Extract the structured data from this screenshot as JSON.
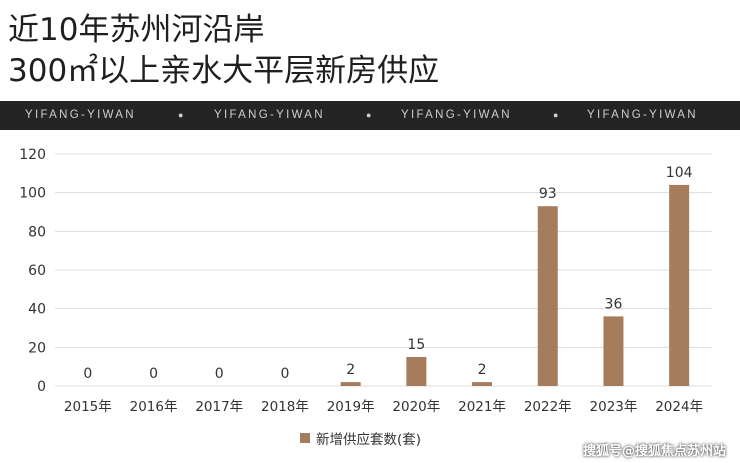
{
  "title": {
    "line1": "近10年苏州河沿岸",
    "line2": "300㎡以上亲水大平层新房供应"
  },
  "banner": {
    "items": [
      "YIFANG-YIWAN",
      "●",
      "YIFANG-YIWAN",
      "●",
      "YIFANG-YIWAN",
      "●",
      "YIFANG-YIWAN"
    ]
  },
  "chart_data": {
    "type": "bar",
    "categories": [
      "2015年",
      "2016年",
      "2017年",
      "2018年",
      "2019年",
      "2020年",
      "2021年",
      "2022年",
      "2023年",
      "2024年"
    ],
    "series": [
      {
        "name": "新增供应套数(套)",
        "values": [
          0,
          0,
          0,
          0,
          2,
          15,
          2,
          93,
          36,
          104
        ]
      }
    ],
    "ylim": [
      0,
      120
    ],
    "yticks": [
      0,
      20,
      40,
      60,
      80,
      100,
      120
    ],
    "grid": true,
    "legend": "bottom",
    "bar_color": "#a57c5c",
    "grid_color": "#dddddd"
  },
  "watermark": "搜狐号@搜狐焦点苏州站"
}
